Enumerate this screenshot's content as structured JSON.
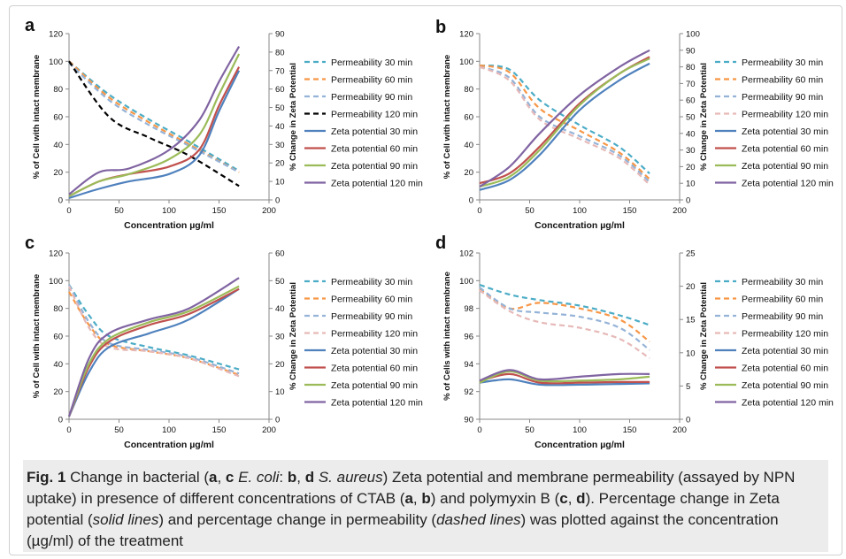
{
  "colors": {
    "perm30": "#4bacc6",
    "perm60": "#f79646",
    "perm90": "#95b3d7",
    "perm120": "#e6b9b8",
    "perm120_a": "#000000",
    "zeta30": "#4f81bd",
    "zeta60": "#c0504d",
    "zeta90": "#9bbb59",
    "zeta120": "#8064a2"
  },
  "legend": [
    "Permeability 30 min",
    "Permeability 60 min",
    "Permeability 90 min",
    "Permeability 120 min",
    "Zeta potential 30 min",
    "Zeta potential 60 min",
    "Zeta potential 90 min",
    "Zeta potential 120 min"
  ],
  "caption": {
    "fig_label": "Fig. 1",
    "text_1": "  Change in bacterial (",
    "a": "a",
    "sep1": ", ",
    "c": "c",
    "ecoli": " E. coli",
    "colon": ": ",
    "b": "b",
    "sep2": ", ",
    "d": "d",
    "saureus": " S. aureus",
    "text_2": ") Zeta potential and membrane permeability (assayed by NPN uptake) in presence of different concentrations of CTAB (",
    "a2": "a",
    "sep3": ", ",
    "b2": "b",
    "text_3": ") and polymyxin B (",
    "c2": "c",
    "sep4": ", ",
    "d2": "d",
    "text_4": "). Percentage change in Zeta potential (",
    "solid": "solid lines",
    "text_5": ") and percentage change in permeability (",
    "dashed": "dashed lines",
    "text_6": ") was plotted against the concentration (µg/ml) of the treatment"
  },
  "chart_data": [
    {
      "panel": "a",
      "type": "line",
      "xlabel": "Concentration µg/ml",
      "ylabel": "% of Cell with intact membrane",
      "y2label": "% Change in Zeta Potential",
      "xlim": [
        0,
        200
      ],
      "xticks": [
        0,
        50,
        100,
        150,
        200
      ],
      "ylim": [
        0,
        120
      ],
      "yticks": [
        0,
        20,
        40,
        60,
        80,
        100,
        120
      ],
      "y2lim": [
        0,
        90
      ],
      "y2ticks": [
        0,
        10,
        20,
        30,
        40,
        50,
        60,
        70,
        80,
        90
      ],
      "series": [
        {
          "name": "Permeability 30 min",
          "axis": "left",
          "style": "dashed",
          "color": "#4bacc6",
          "x": [
            0,
            40,
            80,
            120,
            170
          ],
          "y": [
            100,
            76,
            58,
            42,
            21
          ]
        },
        {
          "name": "Permeability 60 min",
          "axis": "left",
          "style": "dashed",
          "color": "#f79646",
          "x": [
            0,
            40,
            80,
            120,
            170
          ],
          "y": [
            100,
            74,
            56,
            40,
            20
          ]
        },
        {
          "name": "Permeability 90 min",
          "axis": "left",
          "style": "dashed",
          "color": "#95b3d7",
          "x": [
            0,
            40,
            80,
            120,
            170
          ],
          "y": [
            99,
            72,
            54,
            39,
            20
          ]
        },
        {
          "name": "Permeability 120 min",
          "axis": "left",
          "style": "dashed",
          "color": "#000000",
          "x": [
            0,
            40,
            80,
            120,
            170
          ],
          "y": [
            100,
            60,
            45,
            32,
            10
          ]
        },
        {
          "name": "Zeta potential 30 min",
          "axis": "right",
          "style": "solid",
          "color": "#4f81bd",
          "x": [
            0,
            30,
            60,
            100,
            130,
            150,
            170
          ],
          "y": [
            1,
            6,
            10,
            14,
            24,
            48,
            70
          ]
        },
        {
          "name": "Zeta potential 60 min",
          "axis": "right",
          "style": "solid",
          "color": "#c0504d",
          "x": [
            0,
            30,
            60,
            100,
            130,
            150,
            170
          ],
          "y": [
            2,
            10,
            14,
            18,
            27,
            51,
            72
          ]
        },
        {
          "name": "Zeta potential 90 min",
          "axis": "right",
          "style": "solid",
          "color": "#9bbb59",
          "x": [
            0,
            30,
            60,
            100,
            130,
            150,
            170
          ],
          "y": [
            2,
            10,
            14,
            22,
            35,
            57,
            79
          ]
        },
        {
          "name": "Zeta potential 120 min",
          "axis": "right",
          "style": "solid",
          "color": "#8064a2",
          "x": [
            0,
            30,
            60,
            100,
            130,
            150,
            170
          ],
          "y": [
            3,
            15,
            17,
            27,
            43,
            64,
            83
          ]
        }
      ]
    },
    {
      "panel": "b",
      "type": "line",
      "xlabel": "Concentration µg/ml",
      "ylabel": "% of Cell with intact membrane",
      "y2label": "% Change in Zeta Potential",
      "xlim": [
        0,
        200
      ],
      "xticks": [
        0,
        50,
        100,
        150,
        200
      ],
      "ylim": [
        0,
        120
      ],
      "yticks": [
        0,
        20,
        40,
        60,
        80,
        100,
        120
      ],
      "y2lim": [
        0,
        100
      ],
      "y2ticks": [
        0,
        10,
        20,
        30,
        40,
        50,
        60,
        70,
        80,
        90,
        100
      ],
      "series": [
        {
          "name": "Permeability 30 min",
          "axis": "left",
          "style": "dashed",
          "color": "#4bacc6",
          "x": [
            0,
            30,
            60,
            100,
            140,
            170
          ],
          "y": [
            97,
            94,
            72,
            54,
            38,
            19
          ]
        },
        {
          "name": "Permeability 60 min",
          "axis": "left",
          "style": "dashed",
          "color": "#f79646",
          "x": [
            0,
            30,
            60,
            100,
            140,
            170
          ],
          "y": [
            97,
            92,
            66,
            50,
            34,
            15
          ]
        },
        {
          "name": "Permeability 90 min",
          "axis": "left",
          "style": "dashed",
          "color": "#95b3d7",
          "x": [
            0,
            30,
            60,
            100,
            140,
            170
          ],
          "y": [
            96,
            88,
            60,
            46,
            32,
            13
          ]
        },
        {
          "name": "Permeability 120 min",
          "axis": "left",
          "style": "dashed",
          "color": "#e6b9b8",
          "x": [
            0,
            30,
            60,
            100,
            140,
            170
          ],
          "y": [
            96,
            86,
            58,
            44,
            30,
            11
          ]
        },
        {
          "name": "Zeta potential 30 min",
          "axis": "right",
          "style": "solid",
          "color": "#4f81bd",
          "x": [
            0,
            30,
            60,
            100,
            140,
            170
          ],
          "y": [
            6,
            12,
            27,
            54,
            72,
            82
          ]
        },
        {
          "name": "Zeta potential 60 min",
          "axis": "right",
          "style": "solid",
          "color": "#c0504d",
          "x": [
            0,
            30,
            60,
            100,
            140,
            170
          ],
          "y": [
            10,
            16,
            32,
            58,
            76,
            86
          ]
        },
        {
          "name": "Zeta potential 90 min",
          "axis": "right",
          "style": "solid",
          "color": "#9bbb59",
          "x": [
            0,
            30,
            60,
            100,
            140,
            170
          ],
          "y": [
            8,
            14,
            30,
            57,
            76,
            85
          ]
        },
        {
          "name": "Zeta potential 120 min",
          "axis": "right",
          "style": "solid",
          "color": "#8064a2",
          "x": [
            0,
            30,
            60,
            100,
            140,
            170
          ],
          "y": [
            8,
            20,
            40,
            63,
            80,
            90
          ]
        }
      ]
    },
    {
      "panel": "c",
      "type": "line",
      "xlabel": "Concentration µg/ml",
      "ylabel": "% of Cell with intact membrane",
      "y2label": "% Change in Zeta Potential",
      "xlim": [
        0,
        200
      ],
      "xticks": [
        0,
        50,
        100,
        150,
        200
      ],
      "ylim": [
        0,
        120
      ],
      "yticks": [
        0,
        20,
        40,
        60,
        80,
        100,
        120
      ],
      "y2lim": [
        0,
        60
      ],
      "y2ticks": [
        0,
        10,
        20,
        30,
        40,
        50,
        60
      ],
      "series": [
        {
          "name": "Permeability 30 min",
          "axis": "left",
          "style": "dashed",
          "color": "#4bacc6",
          "x": [
            0,
            20,
            40,
            80,
            120,
            170
          ],
          "y": [
            97,
            75,
            60,
            52,
            46,
            36
          ]
        },
        {
          "name": "Permeability 60 min",
          "axis": "left",
          "style": "dashed",
          "color": "#f79646",
          "x": [
            0,
            20,
            40,
            80,
            120,
            170
          ],
          "y": [
            92,
            68,
            54,
            49,
            44,
            32
          ]
        },
        {
          "name": "Permeability 90 min",
          "axis": "left",
          "style": "dashed",
          "color": "#95b3d7",
          "x": [
            0,
            20,
            40,
            80,
            120,
            170
          ],
          "y": [
            97,
            70,
            55,
            50,
            45,
            33
          ]
        },
        {
          "name": "Permeability 120 min",
          "axis": "left",
          "style": "dashed",
          "color": "#e6b9b8",
          "x": [
            0,
            20,
            40,
            80,
            120,
            170
          ],
          "y": [
            96,
            66,
            52,
            49,
            44,
            31
          ]
        },
        {
          "name": "Zeta potential 30 min",
          "axis": "right",
          "style": "solid",
          "color": "#4f81bd",
          "x": [
            0,
            20,
            40,
            80,
            120,
            170
          ],
          "y": [
            1,
            17,
            26,
            31,
            36,
            47
          ]
        },
        {
          "name": "Zeta potential 60 min",
          "axis": "right",
          "style": "solid",
          "color": "#c0504d",
          "x": [
            0,
            20,
            40,
            80,
            120,
            170
          ],
          "y": [
            1,
            19,
            28,
            34,
            38,
            47
          ]
        },
        {
          "name": "Zeta potential 90 min",
          "axis": "right",
          "style": "solid",
          "color": "#9bbb59",
          "x": [
            0,
            20,
            40,
            80,
            120,
            170
          ],
          "y": [
            1,
            20,
            29,
            35,
            39,
            48
          ]
        },
        {
          "name": "Zeta potential 120 min",
          "axis": "right",
          "style": "solid",
          "color": "#8064a2",
          "x": [
            0,
            20,
            40,
            80,
            120,
            170
          ],
          "y": [
            1,
            22,
            31,
            36,
            40,
            51
          ]
        }
      ]
    },
    {
      "panel": "d",
      "type": "line",
      "xlabel": "Concentration µg/ml",
      "ylabel": "% of Cells with intact membrane",
      "y2label": "% Change in Zeta Potential",
      "xlim": [
        0,
        200
      ],
      "xticks": [
        0,
        50,
        100,
        150,
        200
      ],
      "ylim": [
        90,
        102
      ],
      "yticks": [
        90,
        92,
        94,
        96,
        98,
        100,
        102
      ],
      "y2lim": [
        0,
        25
      ],
      "y2ticks": [
        0,
        5,
        10,
        15,
        20,
        25
      ],
      "series": [
        {
          "name": "Permeability 30 min",
          "axis": "left",
          "style": "dashed",
          "color": "#4bacc6",
          "x": [
            0,
            30,
            60,
            100,
            140,
            170
          ],
          "y": [
            99.7,
            99.0,
            98.6,
            98.2,
            97.5,
            96.8
          ]
        },
        {
          "name": "Permeability 60 min",
          "axis": "left",
          "style": "dashed",
          "color": "#f79646",
          "x": [
            0,
            30,
            60,
            100,
            140,
            170
          ],
          "y": [
            99.4,
            98.0,
            98.4,
            98.0,
            97.2,
            95.6
          ]
        },
        {
          "name": "Permeability 90 min",
          "axis": "left",
          "style": "dashed",
          "color": "#95b3d7",
          "x": [
            0,
            30,
            60,
            100,
            140,
            170
          ],
          "y": [
            99.5,
            98.0,
            97.7,
            97.4,
            96.6,
            95.0
          ]
        },
        {
          "name": "Permeability 120 min",
          "axis": "left",
          "style": "dashed",
          "color": "#e6b9b8",
          "x": [
            0,
            30,
            60,
            100,
            140,
            170
          ],
          "y": [
            99.3,
            97.8,
            97.0,
            96.6,
            95.8,
            94.4
          ]
        },
        {
          "name": "Zeta potential 30 min",
          "axis": "right",
          "style": "solid",
          "color": "#4f81bd",
          "x": [
            0,
            30,
            60,
            100,
            140,
            170
          ],
          "y": [
            5.5,
            6.0,
            5.2,
            5.2,
            5.3,
            5.4
          ]
        },
        {
          "name": "Zeta potential 60 min",
          "axis": "right",
          "style": "solid",
          "color": "#c0504d",
          "x": [
            0,
            30,
            60,
            100,
            140,
            170
          ],
          "y": [
            5.7,
            6.8,
            5.5,
            5.5,
            5.6,
            5.6
          ]
        },
        {
          "name": "Zeta potential 90 min",
          "axis": "right",
          "style": "solid",
          "color": "#9bbb59",
          "x": [
            0,
            30,
            60,
            100,
            140,
            170
          ],
          "y": [
            5.5,
            7.2,
            5.8,
            5.8,
            6.0,
            6.4
          ]
        },
        {
          "name": "Zeta potential 120 min",
          "axis": "right",
          "style": "solid",
          "color": "#8064a2",
          "x": [
            0,
            30,
            60,
            100,
            140,
            170
          ],
          "y": [
            5.8,
            7.4,
            6.0,
            6.4,
            6.8,
            6.8
          ]
        }
      ]
    }
  ]
}
